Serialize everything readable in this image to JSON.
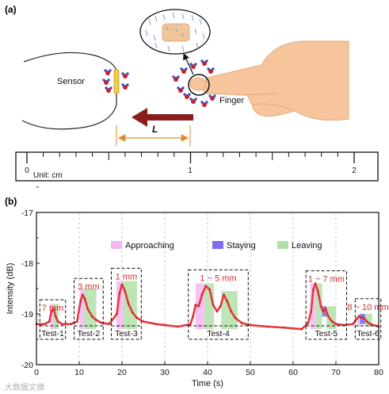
{
  "panel_a": {
    "label": "(a)",
    "sensor_label": "Sensor",
    "finger_label": "Finger",
    "distance_label": "L",
    "ruler": {
      "unit_label": "Unit: cm",
      "major_labels": [
        "0",
        "1",
        "2"
      ]
    }
  },
  "panel_b": {
    "label": "(b)"
  },
  "watermark": "大数据文摘",
  "chart_data": {
    "type": "line",
    "title": "",
    "xlabel": "Time (s)",
    "ylabel": "Intensity (dB)",
    "xlim": [
      0,
      80
    ],
    "ylim": [
      -20,
      -17
    ],
    "xticks": [
      0,
      10,
      20,
      30,
      40,
      50,
      60,
      70,
      80
    ],
    "yticks": [
      -20,
      -19,
      -18,
      -17
    ],
    "grid": "vertical dashed",
    "colors": {
      "line": "#e8383d",
      "approaching": "#f2b8ef",
      "staying": "#7b6cf0",
      "leaving": "#b3e0a8"
    },
    "legend": [
      {
        "name": "Approaching",
        "color": "#f2b8ef"
      },
      {
        "name": "Staying",
        "color": "#7b6cf0"
      },
      {
        "name": "Leaving",
        "color": "#b3e0a8"
      }
    ],
    "series": [
      {
        "x": [
          0,
          2,
          3,
          3.5,
          4,
          4.5,
          5,
          6,
          8,
          9.5,
          10.3,
          10.8,
          11.3,
          12,
          13,
          14,
          15,
          17,
          18.8,
          19.4,
          20,
          20.7,
          21.5,
          22.5,
          23.5,
          25,
          28,
          30,
          33,
          35,
          36,
          36.6,
          37.2,
          37.9,
          38.7,
          39.6,
          40.5,
          41.3,
          42.2,
          43,
          43.8,
          44.6,
          45.5,
          46.5,
          48,
          50,
          54,
          58,
          62,
          63.5,
          64.2,
          64.7,
          65.2,
          65.8,
          66.5,
          67,
          67.6,
          68.2,
          69.1,
          70,
          72,
          74,
          74.8,
          75.4,
          76,
          76.6,
          77.2,
          78,
          80
        ],
        "y": [
          -19.2,
          -19.2,
          -19.15,
          -18.95,
          -18.9,
          -19.05,
          -19.15,
          -19.2,
          -19.2,
          -19.15,
          -18.75,
          -18.62,
          -18.7,
          -18.9,
          -19.05,
          -19.12,
          -19.17,
          -19.2,
          -19.0,
          -18.6,
          -18.42,
          -18.55,
          -18.8,
          -18.98,
          -19.08,
          -19.15,
          -19.2,
          -19.22,
          -19.25,
          -19.22,
          -19.2,
          -19.05,
          -18.82,
          -18.85,
          -18.62,
          -18.45,
          -18.52,
          -18.82,
          -18.95,
          -18.85,
          -18.62,
          -18.75,
          -18.95,
          -19.08,
          -19.18,
          -19.22,
          -19.25,
          -19.27,
          -19.3,
          -19.18,
          -18.95,
          -18.52,
          -18.4,
          -18.55,
          -18.85,
          -18.95,
          -18.9,
          -19.05,
          -19.15,
          -19.2,
          -19.22,
          -19.2,
          -19.1,
          -19.05,
          -19.07,
          -19.08,
          -19.15,
          -19.2,
          -19.25
        ]
      }
    ],
    "bands": [
      {
        "phase": "approaching",
        "x0": 3.2,
        "x1": 4.0,
        "y0": -19.3,
        "y1": -18.8
      },
      {
        "phase": "leaving",
        "x0": 4.0,
        "x1": 5.2,
        "y0": -19.3,
        "y1": -18.8
      },
      {
        "phase": "approaching",
        "x0": 10.2,
        "x1": 11.2,
        "y0": -19.3,
        "y1": -18.5
      },
      {
        "phase": "leaving",
        "x0": 11.2,
        "x1": 14.0,
        "y0": -19.3,
        "y1": -18.5
      },
      {
        "phase": "approaching",
        "x0": 18.7,
        "x1": 20.3,
        "y0": -19.3,
        "y1": -18.35
      },
      {
        "phase": "leaving",
        "x0": 20.3,
        "x1": 23.5,
        "y0": -19.3,
        "y1": -18.35
      },
      {
        "phase": "approaching",
        "x0": 37.2,
        "x1": 39.3,
        "y0": -19.3,
        "y1": -18.4
      },
      {
        "phase": "leaving",
        "x0": 39.3,
        "x1": 41.5,
        "y0": -19.3,
        "y1": -18.4
      },
      {
        "phase": "leaving",
        "x0": 43.2,
        "x1": 47.0,
        "y0": -19.3,
        "y1": -18.55
      },
      {
        "phase": "approaching",
        "x0": 64.0,
        "x1": 65.3,
        "y0": -19.3,
        "y1": -18.4
      },
      {
        "phase": "leaving",
        "x0": 65.3,
        "x1": 66.8,
        "y0": -19.3,
        "y1": -18.4
      },
      {
        "phase": "staying",
        "x0": 66.8,
        "x1": 67.8,
        "y0": -19.05,
        "y1": -18.85
      },
      {
        "phase": "leaving",
        "x0": 67.8,
        "x1": 70.0,
        "y0": -19.3,
        "y1": -18.85
      },
      {
        "phase": "approaching",
        "x0": 75.0,
        "x1": 75.6,
        "y0": -19.25,
        "y1": -19.0
      },
      {
        "phase": "staying",
        "x0": 75.6,
        "x1": 76.8,
        "y0": -19.2,
        "y1": -19.0
      },
      {
        "phase": "leaving",
        "x0": 76.8,
        "x1": 78.5,
        "y0": -19.25,
        "y1": -19.0
      }
    ],
    "tests": [
      {
        "name": "Test-1",
        "range": "7 mm",
        "x0": 0.8,
        "x1": 6.8,
        "ytop": -18.72
      },
      {
        "name": "Test-2",
        "range": "3 mm",
        "x0": 8.8,
        "x1": 15.6,
        "ytop": -18.3
      },
      {
        "name": "Test-3",
        "range": "1 mm",
        "x0": 17.5,
        "x1": 24.5,
        "ytop": -18.1
      },
      {
        "name": "Test-4",
        "range": "1 ~ 5 mm",
        "x0": 35.5,
        "x1": 49.5,
        "ytop": -18.13
      },
      {
        "name": "Test-5",
        "range": "1 ~ 7 mm",
        "x0": 63.0,
        "x1": 72.5,
        "ytop": -18.15
      },
      {
        "name": "Test-6",
        "range": "8 ~ 10 mm",
        "x0": 74.5,
        "x1": 80.5,
        "ytop": -18.7
      }
    ]
  }
}
